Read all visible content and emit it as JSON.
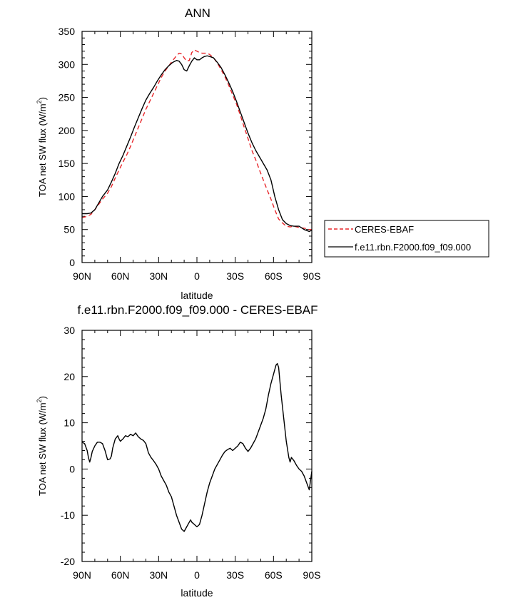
{
  "chart_data": [
    {
      "type": "line",
      "title": "ANN",
      "xlabel": "latitude",
      "ylabel": "TOA net SW flux (W/m²)",
      "ylabel_main": "TOA net SW flux (W/m",
      "ylabel_sup": "2",
      "ylabel_close": ")",
      "xlim": [
        90,
        -90
      ],
      "ylim": [
        0,
        350
      ],
      "x_tick_values": [
        90,
        60,
        30,
        0,
        -30,
        -60,
        -90
      ],
      "x_tick_labels": [
        "90N",
        "60N",
        "30N",
        "0",
        "30S",
        "60S",
        "90S"
      ],
      "y_tick_values": [
        0,
        50,
        100,
        150,
        200,
        250,
        300,
        350
      ],
      "y_tick_labels": [
        "0",
        "50",
        "100",
        "150",
        "200",
        "250",
        "300",
        "350"
      ],
      "legend_position": "right",
      "series": [
        {
          "name": "CERES-EBAF",
          "color": "#e8262a",
          "dash": "dashed",
          "x": [
            90,
            86,
            83,
            80,
            77,
            74,
            70,
            67,
            64,
            61,
            58,
            55,
            52,
            49,
            46,
            43,
            40,
            37,
            34,
            31,
            28,
            25,
            22,
            19,
            16,
            14,
            12,
            10,
            8,
            6,
            4,
            2,
            0,
            -2,
            -4,
            -6,
            -8,
            -10,
            -13,
            -16,
            -19,
            -22,
            -25,
            -28,
            -31,
            -34,
            -37,
            -40,
            -43,
            -46,
            -49,
            -52,
            -55,
            -58,
            -61,
            -64,
            -67,
            -70,
            -73,
            -76,
            -80,
            -84,
            -88,
            -90
          ],
          "y": [
            68,
            70,
            73,
            80,
            88,
            96,
            105,
            115,
            128,
            140,
            152,
            163,
            176,
            190,
            204,
            218,
            232,
            244,
            256,
            268,
            280,
            290,
            298,
            306,
            313,
            317,
            316,
            310,
            305,
            306,
            318,
            322,
            320,
            318,
            317,
            317,
            317,
            315,
            310,
            302,
            292,
            281,
            268,
            254,
            240,
            223,
            205,
            188,
            170,
            156,
            140,
            125,
            110,
            96,
            80,
            66,
            60,
            55,
            54,
            55,
            53,
            52,
            50,
            50
          ]
        },
        {
          "name": "f.e11.rbn.F2000.f09_f09.000",
          "color": "#000000",
          "dash": "solid",
          "x": [
            90,
            86,
            83,
            80,
            77,
            74,
            70,
            67,
            64,
            61,
            58,
            55,
            52,
            49,
            46,
            43,
            40,
            37,
            34,
            31,
            28,
            25,
            22,
            19,
            16,
            14,
            12,
            10,
            8,
            6,
            4,
            2,
            0,
            -2,
            -4,
            -6,
            -8,
            -10,
            -13,
            -16,
            -19,
            -22,
            -25,
            -28,
            -31,
            -34,
            -37,
            -40,
            -43,
            -46,
            -49,
            -52,
            -55,
            -58,
            -61,
            -64,
            -67,
            -70,
            -73,
            -76,
            -80,
            -84,
            -88,
            -90
          ],
          "y": [
            74,
            74,
            75,
            80,
            90,
            100,
            110,
            122,
            135,
            150,
            162,
            176,
            190,
            205,
            219,
            233,
            246,
            256,
            265,
            275,
            284,
            292,
            298,
            303,
            306,
            305,
            300,
            292,
            290,
            298,
            305,
            310,
            307,
            307,
            310,
            312,
            313,
            312,
            310,
            303,
            295,
            284,
            272,
            259,
            244,
            228,
            212,
            196,
            182,
            170,
            160,
            150,
            140,
            125,
            100,
            80,
            65,
            59,
            56,
            55,
            55,
            50,
            47,
            49
          ]
        }
      ]
    },
    {
      "type": "line",
      "title": "f.e11.rbn.F2000.f09_f09.000 - CERES-EBAF",
      "xlabel": "latitude",
      "ylabel": "TOA net SW flux (W/m²)",
      "ylabel_main": "TOA net SW flux (W/m",
      "ylabel_sup": "2",
      "ylabel_close": ")",
      "xlim": [
        90,
        -90
      ],
      "ylim": [
        -20,
        30
      ],
      "x_tick_values": [
        90,
        60,
        30,
        0,
        -30,
        -60,
        -90
      ],
      "x_tick_labels": [
        "90N",
        "60N",
        "30N",
        "0",
        "30S",
        "60S",
        "90S"
      ],
      "y_tick_values": [
        -20,
        -10,
        0,
        10,
        20,
        30
      ],
      "y_tick_labels": [
        "-20",
        "-10",
        "0",
        "10",
        "20",
        "30"
      ],
      "series": [
        {
          "color": "#000000",
          "dash": "solid",
          "x": [
            90,
            88,
            86,
            85,
            84,
            83,
            82,
            80,
            78,
            76,
            74,
            72,
            70,
            68,
            67,
            66,
            64,
            62,
            61,
            60,
            58,
            56,
            54,
            52,
            50,
            48,
            46,
            44,
            42,
            40,
            38,
            36,
            34,
            32,
            30,
            28,
            26,
            24,
            22,
            20,
            18,
            16,
            14,
            12,
            10,
            8,
            6,
            5,
            4,
            2,
            0,
            -2,
            -4,
            -6,
            -8,
            -10,
            -12,
            -14,
            -16,
            -18,
            -20,
            -22,
            -24,
            -26,
            -28,
            -30,
            -32,
            -34,
            -36,
            -38,
            -40,
            -42,
            -44,
            -46,
            -48,
            -50,
            -52,
            -54,
            -56,
            -58,
            -60,
            -62,
            -63,
            -64,
            -65,
            -66,
            -68,
            -70,
            -72,
            -73,
            -74,
            -76,
            -78,
            -80,
            -82,
            -84,
            -86,
            -88,
            -89,
            -90
          ],
          "y": [
            5.8,
            5.5,
            4.0,
            2.5,
            1.5,
            2.5,
            3.8,
            5.0,
            5.8,
            5.8,
            5.5,
            4.0,
            2.0,
            2.2,
            2.8,
            4.5,
            6.5,
            7.2,
            6.5,
            6.0,
            6.5,
            7.2,
            7.0,
            7.5,
            7.2,
            7.8,
            7.0,
            6.5,
            6.2,
            5.5,
            3.5,
            2.5,
            1.8,
            1.0,
            0.0,
            -1.5,
            -2.5,
            -3.5,
            -5.0,
            -6.0,
            -8.0,
            -10.0,
            -11.5,
            -13.0,
            -13.5,
            -12.5,
            -11.5,
            -11.0,
            -11.5,
            -12.0,
            -12.5,
            -12.0,
            -10.0,
            -7.5,
            -5.0,
            -3.0,
            -1.5,
            0.0,
            1.0,
            2.0,
            3.0,
            3.8,
            4.2,
            4.5,
            4.0,
            4.5,
            5.0,
            5.8,
            5.5,
            4.5,
            3.8,
            4.5,
            5.5,
            6.5,
            8.0,
            9.5,
            11.0,
            13.0,
            16.0,
            18.5,
            20.5,
            22.5,
            22.8,
            22.0,
            19.0,
            16.0,
            11.0,
            6.0,
            2.5,
            1.5,
            2.5,
            1.8,
            0.8,
            0.0,
            -0.5,
            -1.5,
            -3.0,
            -4.5,
            -2.5,
            -0.5
          ]
        }
      ]
    }
  ]
}
